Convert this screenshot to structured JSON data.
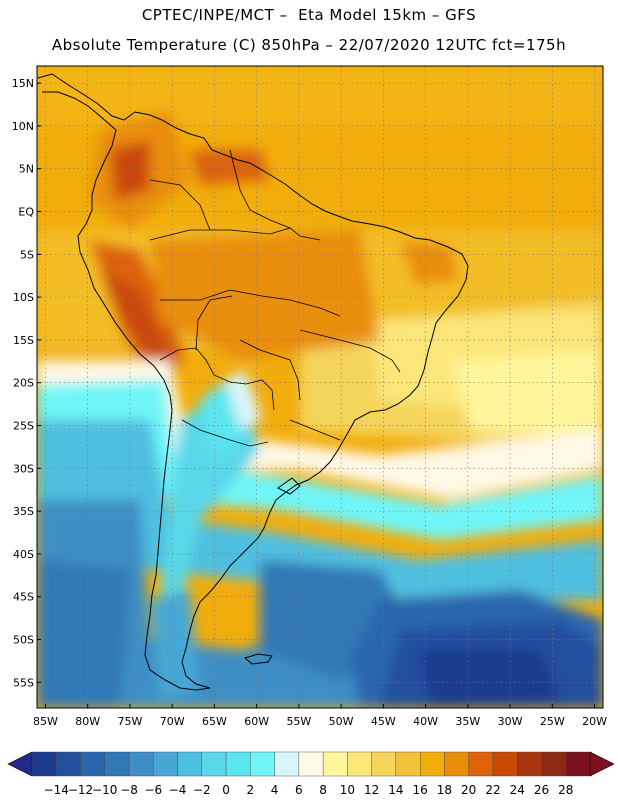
{
  "header": {
    "line1": "CPTEC/INPE/MCT –  Eta Model 15km – GFS",
    "line2": "Absolute Temperature (C) 850hPa – 22/07/2020 12UTC fct=175h"
  },
  "map": {
    "lat_labels": [
      "15N",
      "10N",
      "5N",
      "EQ",
      "5S",
      "10S",
      "15S",
      "20S",
      "25S",
      "30S",
      "35S",
      "40S",
      "45S",
      "50S",
      "55S"
    ],
    "lat_values": [
      15,
      10,
      5,
      0,
      -5,
      -10,
      -15,
      -20,
      -25,
      -30,
      -35,
      -40,
      -45,
      -50,
      -55
    ],
    "lon_labels": [
      "85W",
      "80W",
      "75W",
      "70W",
      "65W",
      "60W",
      "55W",
      "50W",
      "45W",
      "40W",
      "35W",
      "30W",
      "25W",
      "20W"
    ],
    "lon_values": [
      -85,
      -80,
      -75,
      -70,
      -65,
      -60,
      -55,
      -50,
      -45,
      -40,
      -35,
      -30,
      -25,
      -20
    ],
    "lon_range": [
      -86,
      -19
    ],
    "lat_range": [
      -58,
      17
    ],
    "grid": "dotted"
  },
  "colorbar": {
    "labels": [
      "-14",
      "-12",
      "-10",
      "-8",
      "-6",
      "-4",
      "-2",
      "0",
      "2",
      "4",
      "6",
      "8",
      "10",
      "12",
      "14",
      "16",
      "18",
      "20",
      "22",
      "24",
      "26",
      "28"
    ],
    "colors": [
      "#1d3a8c",
      "#23509e",
      "#2a66ad",
      "#3178b5",
      "#3d8ec4",
      "#46a7d4",
      "#4fbfe0",
      "#58d8ea",
      "#5ae6f0",
      "#70f5f8",
      "#d8f5fa",
      "#fff8e6",
      "#fff59a",
      "#fbe67a",
      "#f5d45c",
      "#f3c238",
      "#f1ad0c",
      "#e98e0a",
      "#dd6208",
      "#c94a07",
      "#a93510",
      "#8a2a14",
      "#7a1020"
    ],
    "under_color": "#22298a",
    "over_color": "#7a1020"
  }
}
